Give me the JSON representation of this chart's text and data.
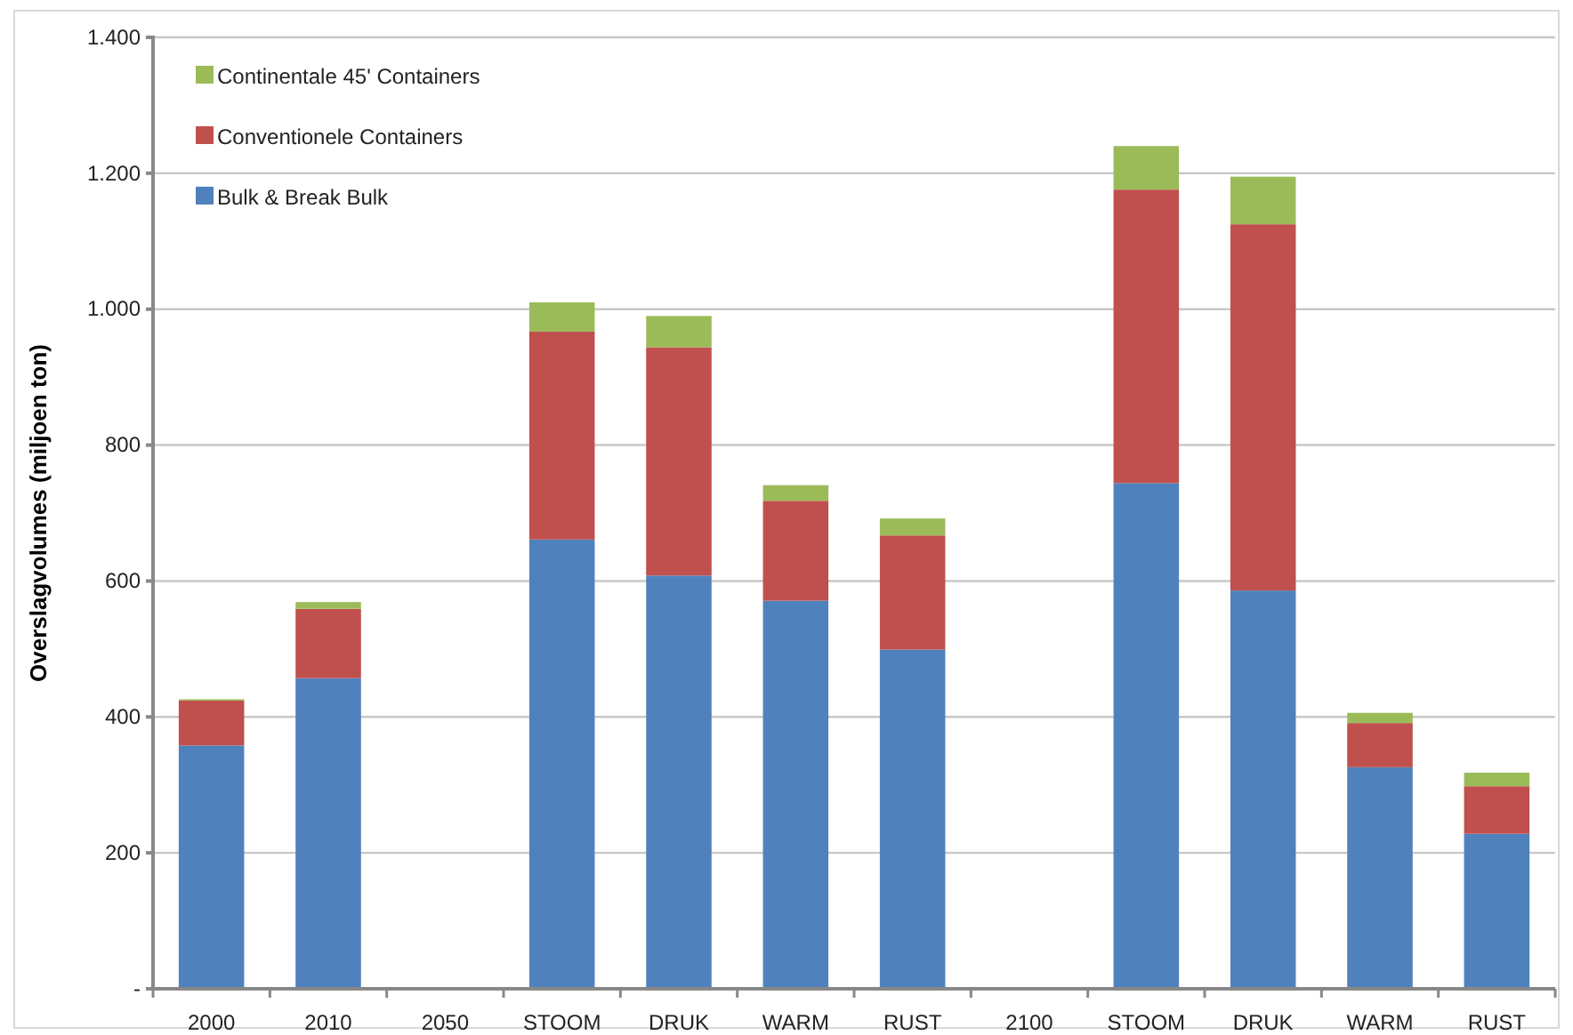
{
  "chart_data": {
    "type": "bar",
    "stacked": true,
    "ylabel": "Overslagvolumes (miljoen ton)",
    "categories": [
      "2000",
      "2010",
      "2050",
      "STOOM",
      "DRUK",
      "WARM",
      "RUST",
      "2100",
      "STOOM",
      "DRUK",
      "WARM",
      "RUST"
    ],
    "series": [
      {
        "name": "Bulk & Break Bulk",
        "color": "#4f81bd",
        "values": [
          358,
          457,
          null,
          661,
          608,
          571,
          499,
          null,
          744,
          586,
          326,
          228
        ]
      },
      {
        "name": "Conventionele Containers",
        "color": "#c0504d",
        "values": [
          66,
          102,
          null,
          306,
          336,
          147,
          168,
          null,
          432,
          539,
          65,
          70
        ]
      },
      {
        "name": "Continentale 45' Containers",
        "color": "#9bbb59",
        "values": [
          2,
          10,
          null,
          43,
          46,
          23,
          25,
          null,
          64,
          70,
          15,
          20
        ]
      }
    ],
    "ylim": [
      0,
      1400
    ],
    "yticks": [
      {
        "value": 0,
        "label": "-"
      },
      {
        "value": 200,
        "label": "200"
      },
      {
        "value": 400,
        "label": "400"
      },
      {
        "value": 600,
        "label": "600"
      },
      {
        "value": 800,
        "label": "800"
      },
      {
        "value": 1000,
        "label": "1.000"
      },
      {
        "value": 1200,
        "label": "1.200"
      },
      {
        "value": 1400,
        "label": "1.400"
      }
    ],
    "grid": "y",
    "legend": "top left"
  }
}
